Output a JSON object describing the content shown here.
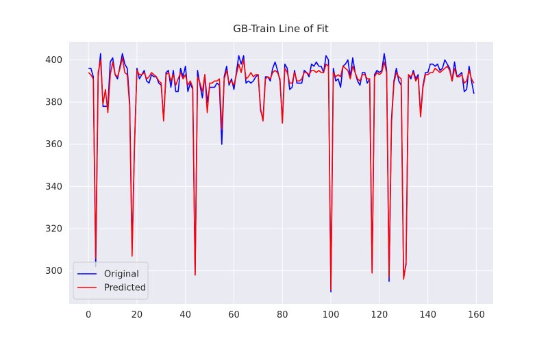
{
  "chart_data": {
    "type": "line",
    "title": "GB-Train Line of Fit",
    "x": [
      0,
      1,
      2,
      3,
      4,
      5,
      6,
      7,
      8,
      9,
      10,
      11,
      12,
      13,
      14,
      15,
      16,
      17,
      18,
      19,
      20,
      21,
      22,
      23,
      24,
      25,
      26,
      27,
      28,
      29,
      30,
      31,
      32,
      33,
      34,
      35,
      36,
      37,
      38,
      39,
      40,
      41,
      42,
      43,
      44,
      45,
      46,
      47,
      48,
      49,
      50,
      51,
      52,
      53,
      54,
      55,
      56,
      57,
      58,
      59,
      60,
      61,
      62,
      63,
      64,
      65,
      66,
      67,
      68,
      69,
      70,
      71,
      72,
      73,
      74,
      75,
      76,
      77,
      78,
      79,
      80,
      81,
      82,
      83,
      84,
      85,
      86,
      87,
      88,
      89,
      90,
      91,
      92,
      93,
      94,
      95,
      96,
      97,
      98,
      99,
      100,
      101,
      102,
      103,
      104,
      105,
      106,
      107,
      108,
      109,
      110,
      111,
      112,
      113,
      114,
      115,
      116,
      117,
      118,
      119,
      120,
      121,
      122,
      123,
      124,
      125,
      126,
      127,
      128,
      129,
      130,
      131,
      132,
      133,
      134,
      135,
      136,
      137,
      138,
      139,
      140,
      141,
      142,
      143,
      144,
      145,
      146,
      147,
      148,
      149,
      150,
      151,
      152,
      153,
      154,
      155,
      156,
      157,
      158,
      159
    ],
    "series": [
      {
        "name": "Original",
        "color": "#0000ff",
        "values": [
          396,
          396,
          392,
          302,
          392,
          403,
          378,
          378,
          378,
          399,
          401,
          393,
          391,
          397,
          403,
          398,
          396,
          380,
          310,
          360,
          396,
          391,
          393,
          395,
          390,
          389,
          393,
          392,
          392,
          389,
          388,
          372,
          394,
          395,
          387,
          395,
          385,
          385,
          396,
          392,
          397,
          385,
          389,
          386,
          298,
          395,
          388,
          382,
          393,
          380,
          387,
          387,
          387,
          389,
          388,
          360,
          392,
          397,
          388,
          391,
          386,
          394,
          402,
          398,
          402,
          389,
          390,
          389,
          390,
          392,
          393,
          376,
          372,
          392,
          392,
          390,
          396,
          399,
          395,
          390,
          371,
          398,
          396,
          386,
          387,
          395,
          389,
          389,
          389,
          395,
          394,
          392,
          398,
          397,
          399,
          397,
          397,
          394,
          402,
          400,
          290,
          396,
          390,
          391,
          387,
          397,
          398,
          400,
          392,
          401,
          394,
          390,
          388,
          394,
          394,
          389,
          391,
          299,
          393,
          395,
          394,
          395,
          403,
          395,
          295,
          372,
          390,
          396,
          390,
          388,
          297,
          303,
          393,
          391,
          395,
          391,
          393,
          374,
          388,
          394,
          394,
          398,
          398,
          397,
          398,
          395,
          396,
          400,
          398,
          396,
          390,
          399,
          392,
          393,
          394,
          385,
          386,
          397,
          390,
          384
        ]
      },
      {
        "name": "Predicted",
        "color": "#ff0000",
        "values": [
          394,
          393,
          391,
          306,
          394,
          400,
          379,
          386,
          375,
          393,
          399,
          393,
          392,
          396,
          401,
          394,
          393,
          378,
          307,
          360,
          395,
          393,
          393,
          394,
          391,
          392,
          394,
          393,
          392,
          390,
          389,
          371,
          393,
          394,
          390,
          393,
          388,
          391,
          394,
          391,
          393,
          388,
          390,
          387,
          298,
          392,
          389,
          385,
          393,
          375,
          389,
          389,
          390,
          390,
          391,
          367,
          391,
          395,
          389,
          390,
          388,
          393,
          398,
          394,
          400,
          391,
          392,
          394,
          392,
          393,
          393,
          377,
          371,
          391,
          392,
          391,
          394,
          395,
          394,
          391,
          370,
          396,
          394,
          389,
          389,
          394,
          390,
          390,
          391,
          394,
          394,
          393,
          395,
          395,
          394,
          395,
          394,
          394,
          398,
          397,
          291,
          394,
          392,
          393,
          392,
          397,
          396,
          395,
          391,
          397,
          394,
          391,
          390,
          393,
          393,
          391,
          391,
          299,
          392,
          394,
          393,
          394,
          399,
          394,
          297,
          370,
          389,
          394,
          392,
          391,
          296,
          304,
          393,
          392,
          394,
          390,
          392,
          373,
          387,
          393,
          393,
          394,
          394,
          396,
          395,
          394,
          395,
          396,
          397,
          395,
          390,
          396,
          392,
          392,
          393,
          389,
          390,
          395,
          391,
          389
        ]
      }
    ],
    "xlim": [
      -7.95,
      166.95
    ],
    "ylim": [
      284.3,
      408.6
    ],
    "xticks": [
      0,
      20,
      40,
      60,
      80,
      100,
      120,
      140,
      160
    ],
    "yticks": [
      300,
      320,
      340,
      360,
      380,
      400
    ],
    "grid": true,
    "legend": "lower left"
  }
}
